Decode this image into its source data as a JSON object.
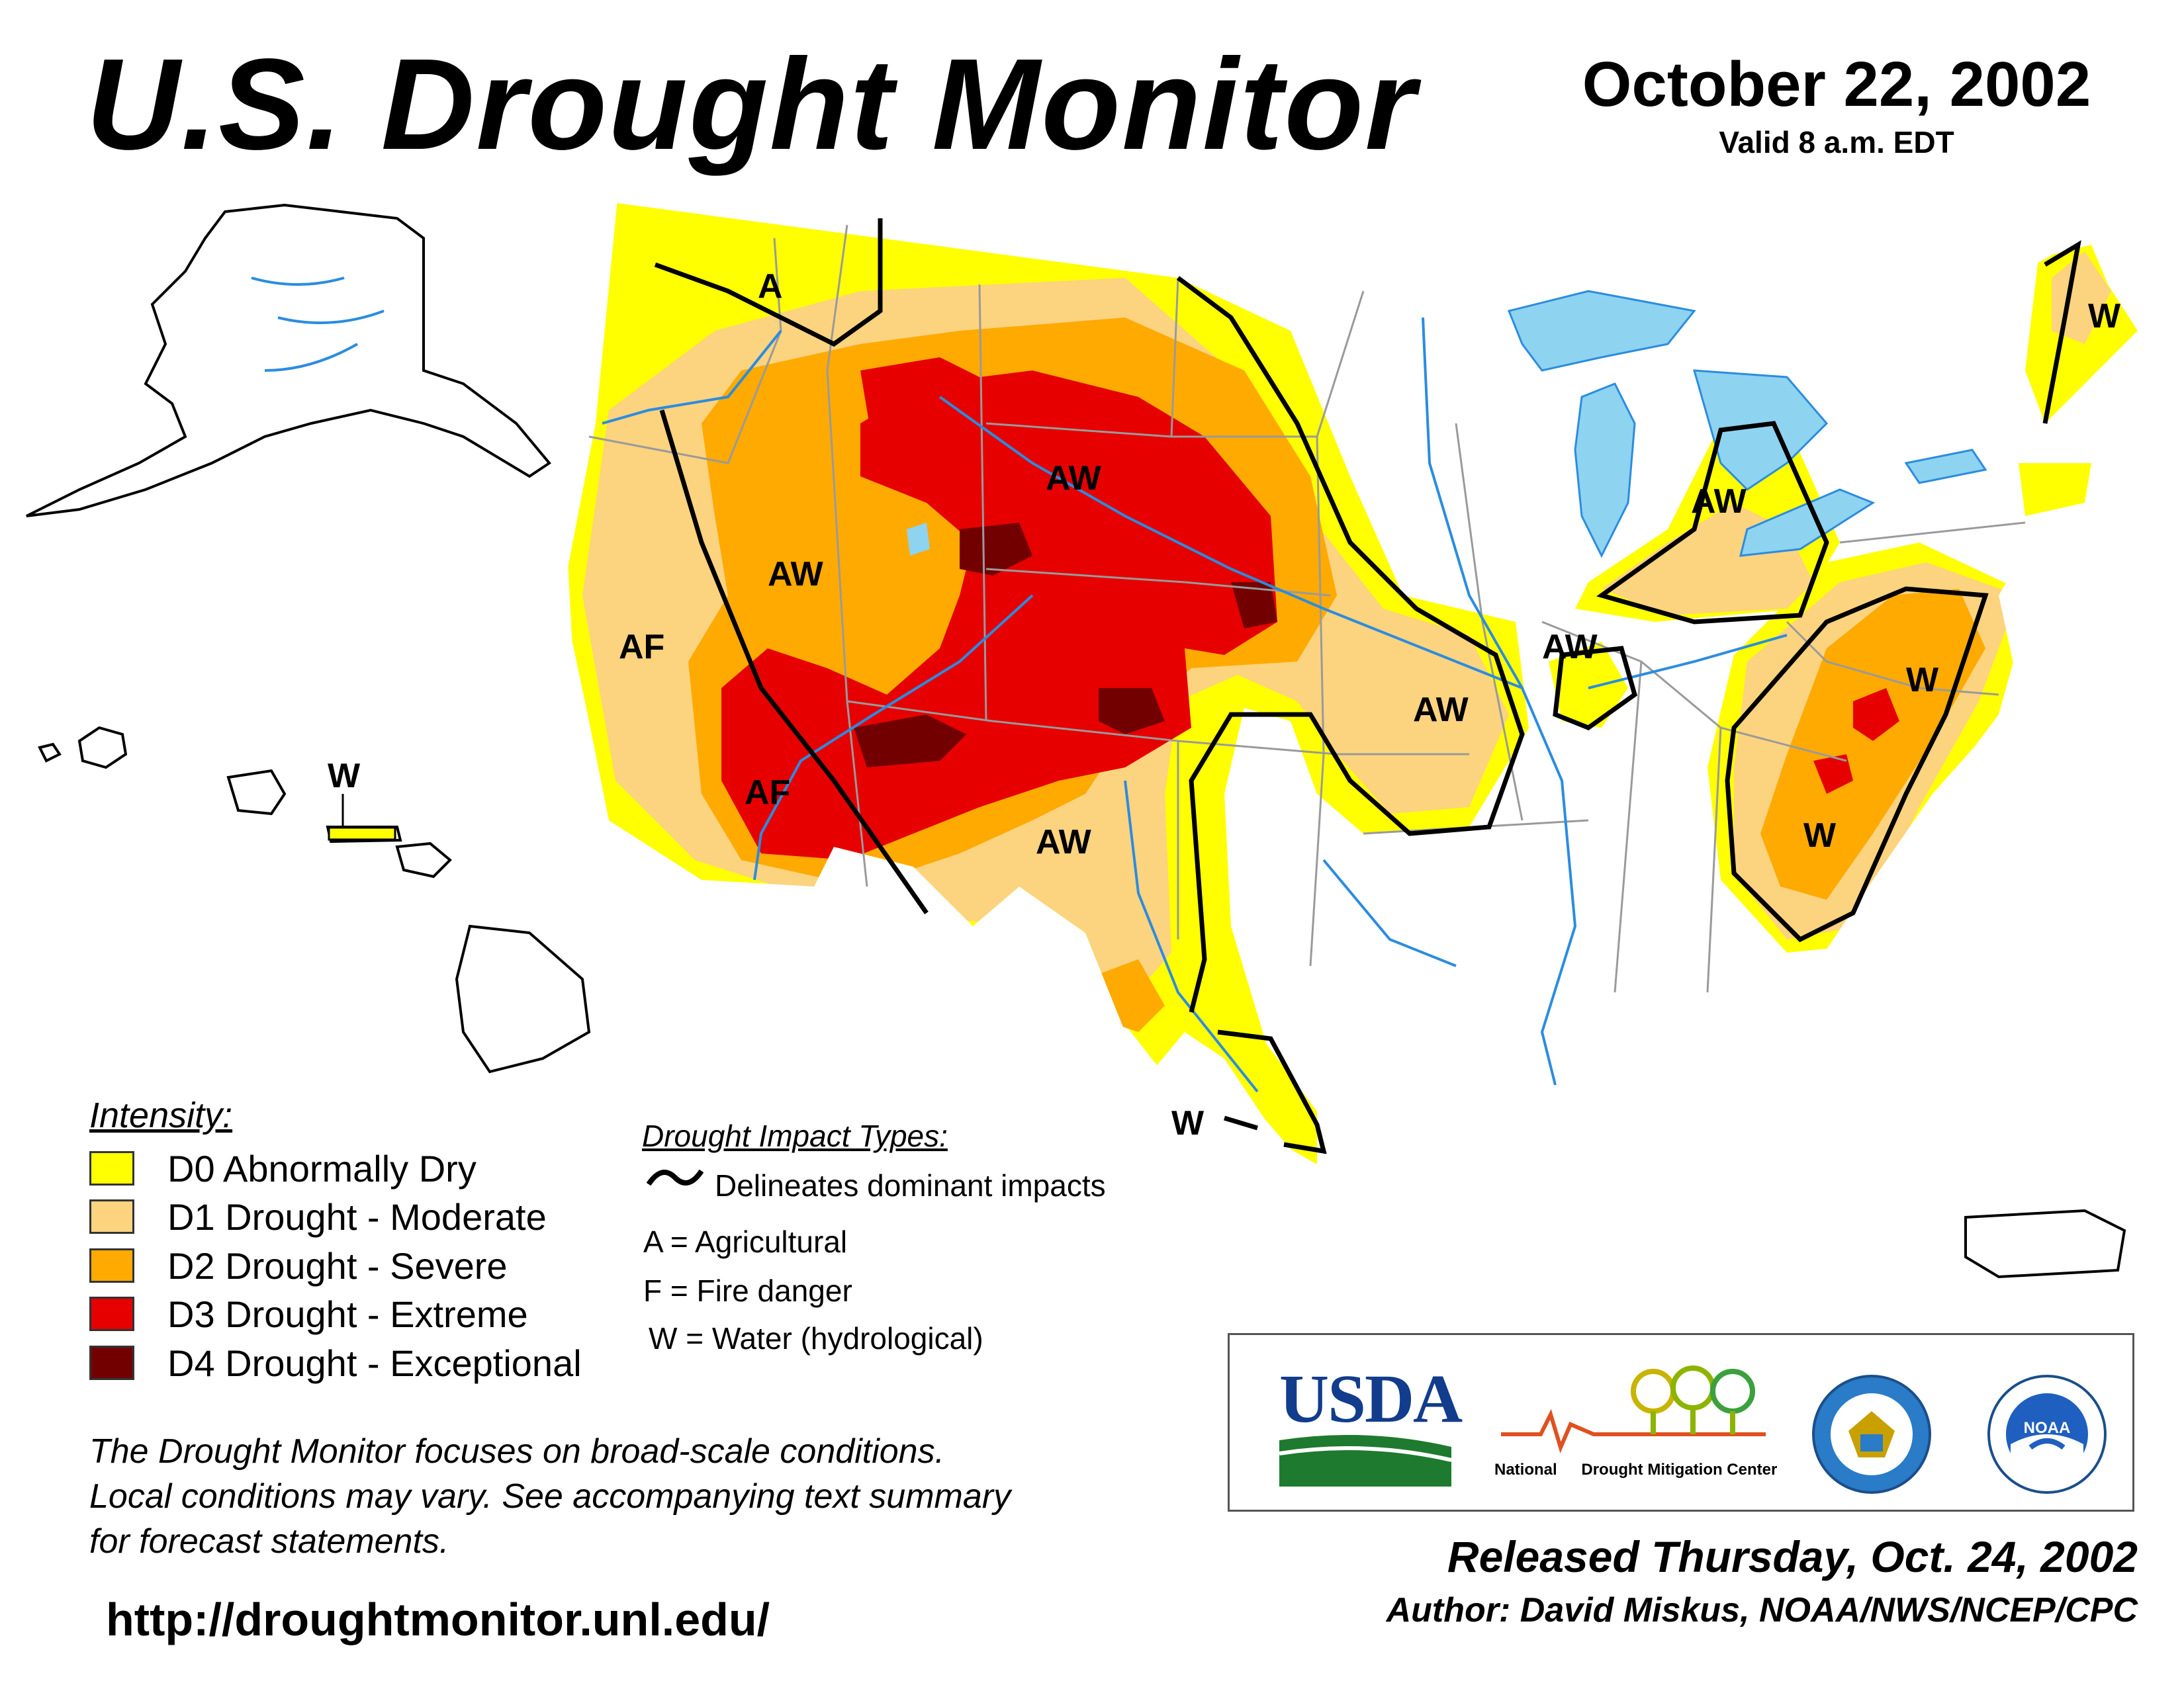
{
  "header": {
    "title": "U.S. Drought Monitor",
    "date": "October 22, 2002",
    "valid": "Valid 8 a.m. EDT"
  },
  "map": {
    "labels": [
      "A",
      "AW",
      "AW",
      "AF",
      "AF",
      "AW",
      "AW",
      "AW",
      "AW",
      "W",
      "W",
      "W",
      "W",
      "W"
    ]
  },
  "legend": {
    "title": "Intensity:",
    "items": [
      {
        "label": "D0 Abnormally Dry",
        "color": "#FFFF00"
      },
      {
        "label": "D1 Drought - Moderate",
        "color": "#FCD37F"
      },
      {
        "label": "D2 Drought - Severe",
        "color": "#FFAA00"
      },
      {
        "label": "D3 Drought - Extreme",
        "color": "#E60000"
      },
      {
        "label": "D4 Drought - Exceptional",
        "color": "#730000"
      }
    ]
  },
  "impacts": {
    "title": "Drought Impact Types:",
    "line_label": "Delineates dominant impacts",
    "a": "A = Agricultural",
    "f": "F = Fire danger",
    "w": "W = Water (hydrological)"
  },
  "note": {
    "line1": "The Drought Monitor focuses on broad-scale conditions.",
    "line2": "Local conditions may vary. See accompanying text summary",
    "line3": "for forecast statements."
  },
  "url": "http://droughtmonitor.unl.edu/",
  "logos": {
    "usda": "USDA",
    "ndmc_1": "National",
    "ndmc_2": "Drought Mitigation Center",
    "noaa": "NOAA"
  },
  "footer": {
    "released": "Released Thursday, Oct. 24, 2002",
    "author": "Author: David Miskus, NOAA/NWS/NCEP/CPC"
  },
  "colors": {
    "water": "#8ED3F0",
    "rivers": "#2B8CE0",
    "borders": "#9A9A9A",
    "land": "#FFFFFF"
  }
}
